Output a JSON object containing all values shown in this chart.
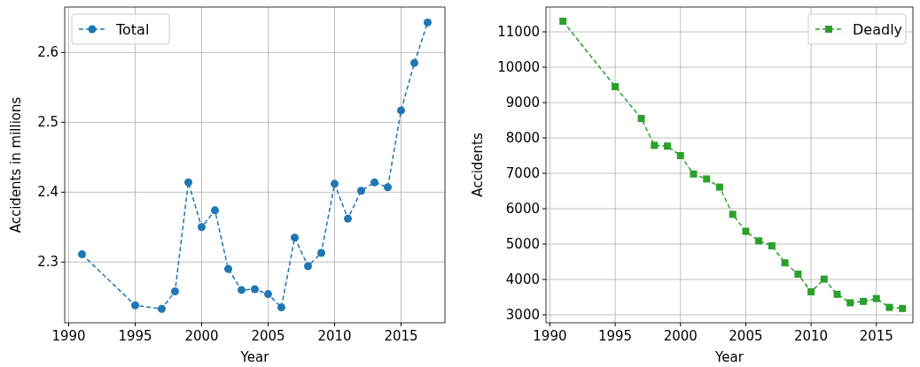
{
  "chart_data": [
    {
      "type": "line",
      "xlabel": "Year",
      "ylabel": "Accidents in millions",
      "x": [
        1991,
        1995,
        1997,
        1998,
        1999,
        2000,
        2001,
        2002,
        2003,
        2004,
        2005,
        2006,
        2007,
        2008,
        2009,
        2010,
        2011,
        2012,
        2013,
        2014,
        2015,
        2016,
        2017
      ],
      "series": [
        {
          "name": "Total",
          "color": "#1f77b4",
          "values": [
            2.311,
            2.238,
            2.233,
            2.258,
            2.414,
            2.35,
            2.374,
            2.29,
            2.26,
            2.261,
            2.254,
            2.235,
            2.335,
            2.294,
            2.313,
            2.412,
            2.362,
            2.402,
            2.414,
            2.407,
            2.517,
            2.585,
            2.643
          ]
        }
      ],
      "xlim": [
        1989.7,
        2018.3
      ],
      "xticks": [
        1990,
        1995,
        2000,
        2005,
        2010,
        2015
      ],
      "ylim": [
        2.213,
        2.665
      ],
      "yticks": [
        {
          "value": 2.3,
          "label": "2.3"
        },
        {
          "value": 2.4,
          "label": "2.4"
        },
        {
          "value": 2.5,
          "label": "2.5"
        },
        {
          "value": 2.6,
          "label": "2.6"
        }
      ],
      "grid": true,
      "legend": "top left",
      "marker": "circle",
      "line_style": "dashed"
    },
    {
      "type": "line",
      "xlabel": "Year",
      "ylabel": "Accidents",
      "x": [
        1991,
        1995,
        1997,
        1998,
        1999,
        2000,
        2001,
        2002,
        2003,
        2004,
        2005,
        2006,
        2007,
        2008,
        2009,
        2010,
        2011,
        2012,
        2013,
        2014,
        2015,
        2016,
        2017
      ],
      "series": [
        {
          "name": "Deadly",
          "color": "#2ca02c",
          "values": [
            11300,
            9450,
            8550,
            7790,
            7770,
            7500,
            6980,
            6840,
            6610,
            5840,
            5360,
            5090,
            4950,
            4470,
            4150,
            3650,
            4010,
            3580,
            3340,
            3380,
            3460,
            3210,
            3180
          ]
        }
      ],
      "xlim": [
        1989.7,
        2017.8
      ],
      "xticks": [
        1990,
        1995,
        2000,
        2005,
        2010,
        2015
      ],
      "ylim": [
        2775,
        11700
      ],
      "yticks": [
        3000,
        4000,
        5000,
        6000,
        7000,
        8000,
        9000,
        10000,
        11000
      ],
      "grid": true,
      "legend": "top right",
      "marker": "square",
      "line_style": "dashed"
    }
  ]
}
